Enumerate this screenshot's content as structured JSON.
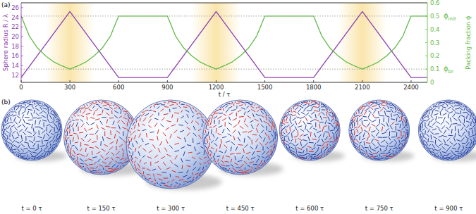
{
  "chart_data": {
    "type": "line",
    "title": "(a)",
    "x_label": "t / τ",
    "y_label": "Sphere radius R / λ",
    "y2_label": "Packing fraction ϕ",
    "xlim": [
      0,
      2500
    ],
    "xticks": [
      0,
      300,
      600,
      900,
      1200,
      1500,
      1800,
      2100,
      2400
    ],
    "ylim": [
      10.5,
      27
    ],
    "yticks": [
      12,
      14,
      16,
      18,
      20,
      22,
      24,
      26
    ],
    "y2lim": [
      0,
      0.6
    ],
    "y2ticks": [
      0,
      0.1,
      0.2,
      0.3,
      0.4,
      0.5,
      0.6
    ],
    "series": [
      {
        "color": "#8e3fb0",
        "x": [
          0,
          300,
          600,
          900,
          1200,
          1500,
          1800,
          2100,
          2400,
          2500
        ],
        "values": [
          11.5,
          25.2,
          11.5,
          11.5,
          25.2,
          11.5,
          11.5,
          25.2,
          11.5,
          11.5
        ]
      },
      {
        "color": "#62bb4a",
        "axis": "y2",
        "x": [
          0,
          50,
          100,
          150,
          200,
          250,
          300,
          350,
          400,
          450,
          500,
          550,
          600,
          900,
          950,
          1000,
          1050,
          1100,
          1150,
          1200,
          1250,
          1300,
          1350,
          1400,
          1450,
          1500,
          1800,
          1850,
          1900,
          1950,
          2000,
          2050,
          2100,
          2150,
          2200,
          2250,
          2300,
          2350,
          2400,
          2500
        ],
        "values": [
          0.5,
          0.35,
          0.26,
          0.2,
          0.155,
          0.125,
          0.1,
          0.125,
          0.155,
          0.2,
          0.26,
          0.35,
          0.5,
          0.5,
          0.35,
          0.26,
          0.2,
          0.155,
          0.125,
          0.1,
          0.125,
          0.155,
          0.2,
          0.26,
          0.35,
          0.5,
          0.5,
          0.35,
          0.26,
          0.2,
          0.155,
          0.125,
          0.1,
          0.125,
          0.155,
          0.2,
          0.26,
          0.35,
          0.5,
          0.5
        ]
      }
    ],
    "shaded_regions": [
      [
        150,
        450
      ],
      [
        1050,
        1350
      ],
      [
        1950,
        2250
      ]
    ],
    "annotations": [
      {
        "text": "ϕ",
        "sub": "init",
        "value": 0.5
      },
      {
        "text": "ϕ",
        "sub": "br",
        "value": 0.1
      }
    ]
  },
  "figure_b": {
    "title": "(b)",
    "spheres": [
      {
        "time": 0,
        "label": "t = 0 τ",
        "radius": 11.5,
        "colors": [
          "#2b3c9b"
        ]
      },
      {
        "time": 150,
        "label": "t = 150 τ",
        "radius": 18.35,
        "colors": [
          "#d6322b",
          "#d6322b",
          "#d6322b",
          "#2b3c9b"
        ]
      },
      {
        "time": 300,
        "label": "t = 300 τ",
        "radius": 25.2,
        "colors": [
          "#d6322b",
          "#d6322b",
          "#2b3c9b"
        ]
      },
      {
        "time": 450,
        "label": "t = 450 τ",
        "radius": 18.35,
        "colors": [
          "#d6322b",
          "#2b3c9b"
        ]
      },
      {
        "time": 600,
        "label": "t = 600 τ",
        "radius": 11.5,
        "colors": [
          "#d6322b",
          "#2b3c9b",
          "#2b3c9b"
        ]
      },
      {
        "time": 750,
        "label": "t = 750 τ",
        "radius": 11.5,
        "colors": [
          "#2b3c9b",
          "#2b3c9b",
          "#2b3c9b",
          "#2b3c9b",
          "#d6322b"
        ]
      },
      {
        "time": 900,
        "label": "t = 900 τ",
        "radius": 11.5,
        "colors": [
          "#2b3c9b"
        ]
      }
    ]
  }
}
